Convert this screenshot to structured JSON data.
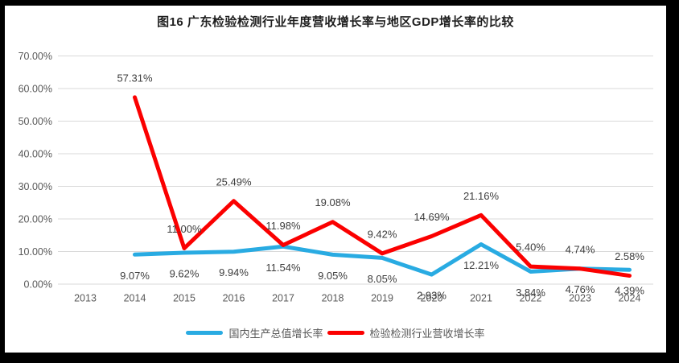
{
  "chart_data": {
    "type": "line",
    "title": "图16 广东检验检测行业年度营收增长率与地区GDP增长率的比较",
    "categories": [
      "2013",
      "2014",
      "2015",
      "2016",
      "2017",
      "2018",
      "2019",
      "2020",
      "2021",
      "2022",
      "2023",
      "2024"
    ],
    "y_axis": {
      "min": 0,
      "max": 70,
      "step": 10,
      "tick_labels": [
        "0.00%",
        "10.00%",
        "20.00%",
        "30.00%",
        "40.00%",
        "50.00%",
        "60.00%",
        "70.00%"
      ]
    },
    "grid": true,
    "legend_position": "bottom",
    "colors": {
      "gridline": "#d9d9d9",
      "axis_text": "#595959",
      "data_label_text": "#3d3d3d"
    },
    "series": [
      {
        "name": "国内生产总值增长率",
        "color": "#29ABE2",
        "label_position": "below",
        "values": [
          null,
          9.07,
          9.62,
          9.94,
          11.54,
          9.05,
          8.05,
          2.93,
          12.21,
          3.84,
          4.76,
          4.39
        ],
        "labels": [
          null,
          "9.07%",
          "9.62%",
          "9.94%",
          "11.54%",
          "9.05%",
          "8.05%",
          "2.93%",
          "12.21%",
          "3.84%",
          "4.76%",
          "4.39%"
        ]
      },
      {
        "name": "检验检测行业营收增长率",
        "color": "#FB0000",
        "label_position": "above",
        "values": [
          null,
          57.31,
          11.0,
          25.49,
          11.98,
          19.08,
          9.42,
          14.69,
          21.16,
          5.4,
          4.74,
          2.58
        ],
        "labels": [
          null,
          "57.31%",
          "11.00%",
          "25.49%",
          "11.98%",
          "19.08%",
          "9.42%",
          "14.69%",
          "21.16%",
          "5.40%",
          "4.74%",
          "2.58%"
        ]
      }
    ]
  }
}
